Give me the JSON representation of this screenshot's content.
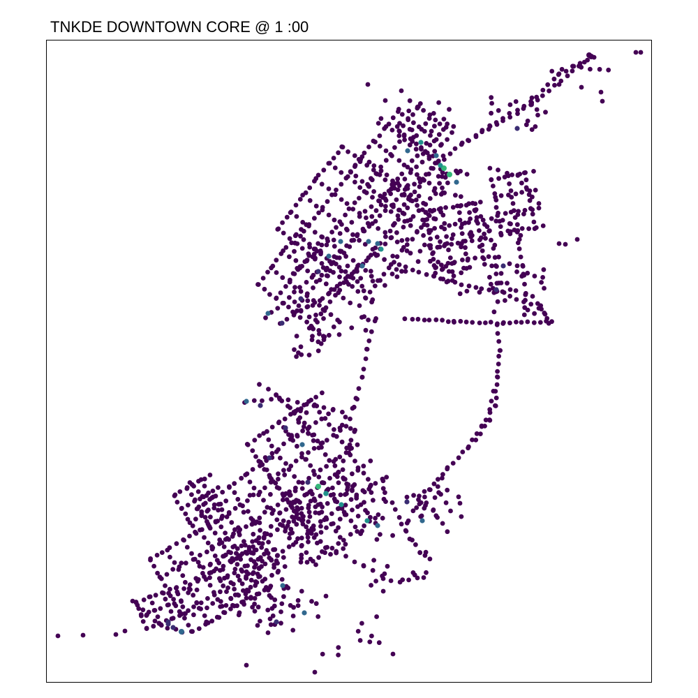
{
  "map": {
    "title": "TNKDE DOWNTOWN CORE @ 1 :00",
    "colors": {
      "low": "#440154",
      "low_mid": "#3b2d73",
      "mid": "#31688e",
      "mid_high": "#21918c",
      "high": "#35b779"
    },
    "point_style": "viridis density points"
  }
}
